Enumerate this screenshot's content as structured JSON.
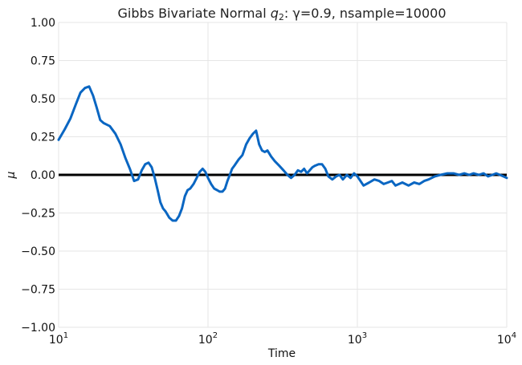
{
  "chart_data": {
    "type": "line",
    "title": "Gibbs Bivariate Normal ",
    "title_math": "q",
    "title_math_sub": "2",
    "title_rest": ": γ=0.9, nsample=10000",
    "xlabel": "Time",
    "ylabel": "μ",
    "xscale": "log",
    "xlim": [
      10,
      10000
    ],
    "ylim": [
      -1.0,
      1.0
    ],
    "xticks": [
      {
        "value": 10,
        "base": "10",
        "exp": "1"
      },
      {
        "value": 100,
        "base": "10",
        "exp": "2"
      },
      {
        "value": 1000,
        "base": "10",
        "exp": "3"
      },
      {
        "value": 10000,
        "base": "10",
        "exp": "4"
      }
    ],
    "yticks": [
      {
        "value": 1.0,
        "label": "1.00"
      },
      {
        "value": 0.75,
        "label": "0.75"
      },
      {
        "value": 0.5,
        "label": "0.50"
      },
      {
        "value": 0.25,
        "label": "0.25"
      },
      {
        "value": 0.0,
        "label": "0.00"
      },
      {
        "value": -0.25,
        "label": "−0.25"
      },
      {
        "value": -0.5,
        "label": "−0.50"
      },
      {
        "value": -0.75,
        "label": "−0.75"
      },
      {
        "value": -1.0,
        "label": "−1.00"
      }
    ],
    "grid": true,
    "reference_line": {
      "y": 0.0,
      "color": "#000000"
    },
    "series": [
      {
        "color": "#0a66c2",
        "x": [
          10,
          11,
          12,
          13,
          14,
          15,
          16,
          17,
          18,
          19,
          20,
          21,
          22,
          24,
          26,
          28,
          30,
          32,
          34,
          36,
          38,
          40,
          42,
          44,
          46,
          48,
          50,
          52,
          55,
          58,
          61,
          64,
          67,
          70,
          73,
          76,
          80,
          84,
          88,
          92,
          96,
          100,
          105,
          110,
          115,
          120,
          125,
          130,
          135,
          140,
          145,
          150,
          160,
          170,
          180,
          190,
          200,
          210,
          220,
          230,
          240,
          250,
          265,
          280,
          300,
          320,
          340,
          360,
          380,
          400,
          420,
          440,
          460,
          480,
          500,
          520,
          550,
          580,
          610,
          640,
          680,
          720,
          760,
          800,
          850,
          900,
          950,
          1000,
          1100,
          1200,
          1300,
          1400,
          1500,
          1600,
          1700,
          1800,
          1900,
          2000,
          2200,
          2400,
          2600,
          2800,
          3000,
          3300,
          3600,
          4000,
          4400,
          4800,
          5200,
          5600,
          6000,
          6500,
          7000,
          7500,
          8000,
          8500,
          9000,
          9500,
          10000
        ],
        "y": [
          0.23,
          0.3,
          0.37,
          0.46,
          0.54,
          0.57,
          0.58,
          0.52,
          0.44,
          0.36,
          0.34,
          0.33,
          0.32,
          0.27,
          0.2,
          0.11,
          0.04,
          -0.04,
          -0.03,
          0.03,
          0.07,
          0.08,
          0.05,
          -0.02,
          -0.1,
          -0.18,
          -0.22,
          -0.24,
          -0.28,
          -0.3,
          -0.3,
          -0.27,
          -0.22,
          -0.14,
          -0.1,
          -0.09,
          -0.06,
          -0.02,
          0.02,
          0.04,
          0.02,
          -0.02,
          -0.06,
          -0.09,
          -0.1,
          -0.11,
          -0.11,
          -0.09,
          -0.04,
          0.0,
          0.04,
          0.06,
          0.1,
          0.13,
          0.2,
          0.24,
          0.27,
          0.29,
          0.2,
          0.16,
          0.15,
          0.16,
          0.12,
          0.09,
          0.06,
          0.03,
          0.0,
          -0.02,
          0.0,
          0.03,
          0.02,
          0.04,
          0.01,
          0.03,
          0.05,
          0.06,
          0.07,
          0.07,
          0.04,
          -0.01,
          -0.03,
          -0.01,
          0.0,
          -0.03,
          0.0,
          -0.02,
          0.01,
          -0.01,
          -0.07,
          -0.05,
          -0.03,
          -0.04,
          -0.06,
          -0.05,
          -0.04,
          -0.07,
          -0.06,
          -0.05,
          -0.07,
          -0.05,
          -0.06,
          -0.04,
          -0.03,
          -0.01,
          0.0,
          0.01,
          0.01,
          0.0,
          0.01,
          0.0,
          0.01,
          0.0,
          0.01,
          -0.01,
          0.0,
          0.01,
          0.0,
          -0.01,
          -0.02
        ]
      }
    ]
  }
}
